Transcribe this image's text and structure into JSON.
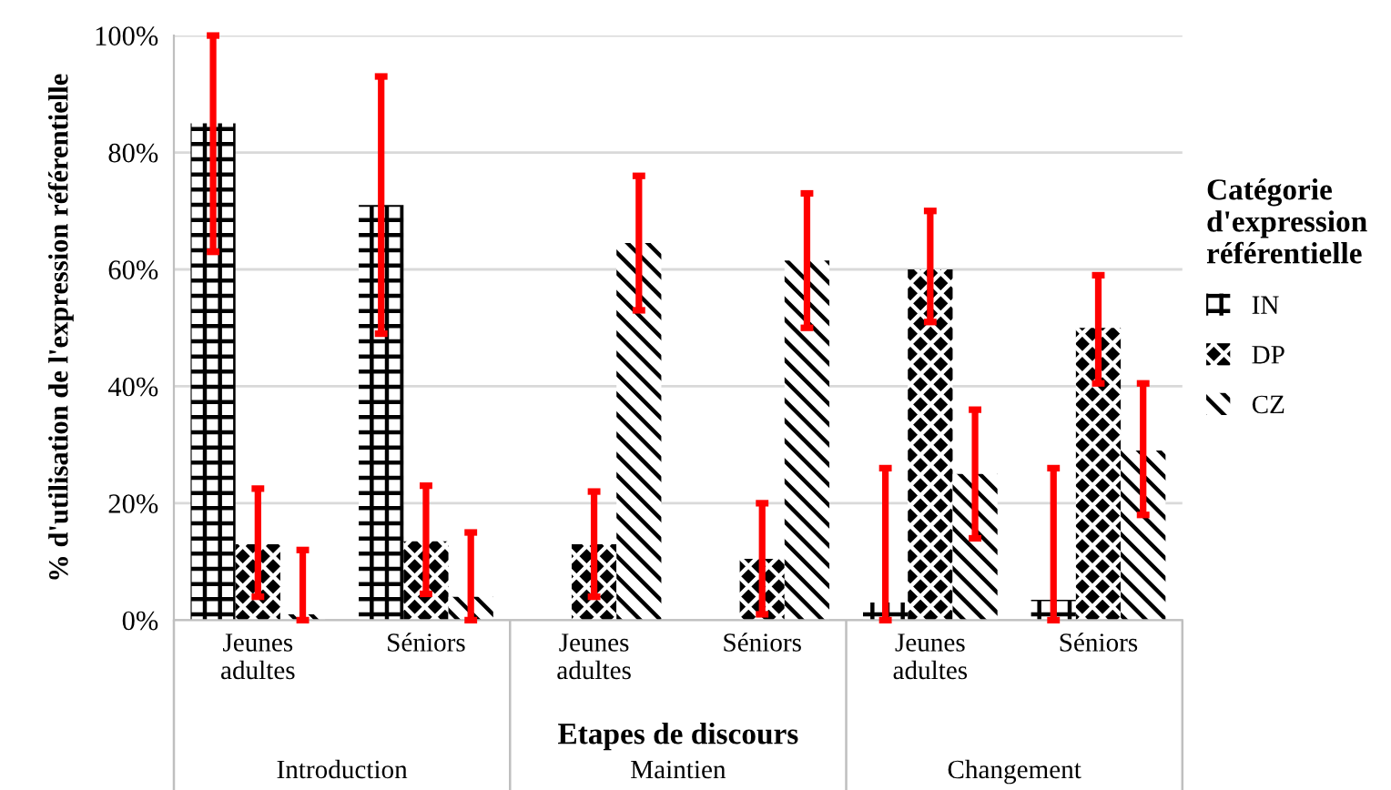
{
  "chart_data": {
    "type": "bar",
    "ylabel": "% d'utilisation de l'expression référentielle",
    "xlabel": "Etapes de discours",
    "legend_title": "Catégorie d'expression référentielle",
    "categories": [
      "Jeunes adultes",
      "Séniors",
      "Jeunes adultes",
      "Séniors",
      "Jeunes adultes",
      "Séniors"
    ],
    "annotations": [
      "Introduction",
      "Maintien",
      "Changement"
    ],
    "series": [
      {
        "name": "IN",
        "color": "#000000",
        "values": [
          85,
          71,
          null,
          null,
          3,
          3.5
        ],
        "errors": [
          [
            63,
            100
          ],
          [
            49,
            93
          ],
          null,
          null,
          [
            0,
            26
          ],
          [
            0,
            26
          ]
        ]
      },
      {
        "name": "DP",
        "color": "#000000",
        "values": [
          13,
          13.5,
          13,
          10.5,
          60,
          50
        ],
        "errors": [
          [
            4,
            22.5
          ],
          [
            4.5,
            23
          ],
          [
            4,
            22
          ],
          [
            1,
            20
          ],
          [
            51,
            70
          ],
          [
            40.5,
            59
          ]
        ]
      },
      {
        "name": "CZ",
        "color": "#000000",
        "values": [
          1,
          4,
          64.5,
          61.5,
          25,
          29
        ],
        "errors": [
          [
            0,
            12
          ],
          [
            0,
            15
          ],
          [
            53,
            76
          ],
          [
            50,
            73
          ],
          [
            14,
            36
          ],
          [
            18,
            40.5
          ]
        ]
      }
    ],
    "ylim": [
      0,
      100
    ],
    "yticks": [
      {
        "value": 0,
        "label": "0%"
      },
      {
        "value": 20,
        "label": "20%"
      },
      {
        "value": 40,
        "label": "40%"
      },
      {
        "value": 60,
        "label": "60%"
      },
      {
        "value": 80,
        "label": "80%"
      },
      {
        "value": 100,
        "label": "100%"
      }
    ],
    "grid": "y",
    "legend": "right"
  }
}
